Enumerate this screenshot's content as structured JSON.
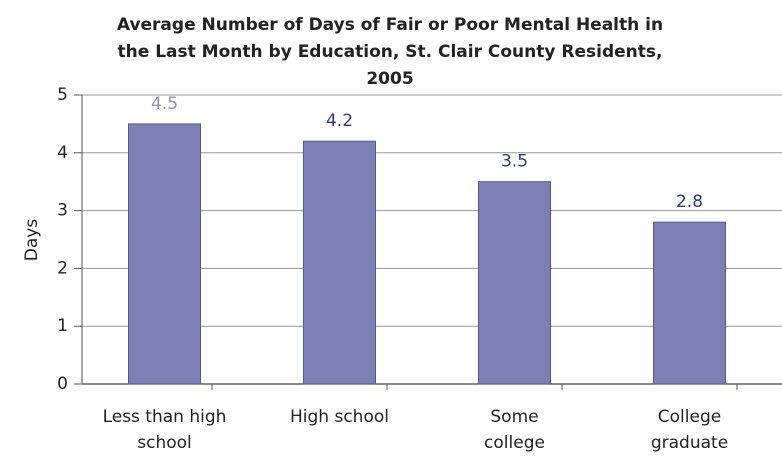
{
  "chart_data": {
    "type": "bar",
    "title": "Average Number of Days of Fair or Poor Mental Health in the Last Month by Education, St. Clair County Residents, 2005",
    "y_label": "Days",
    "categories": [
      "Less than high school",
      "High school",
      "Some college",
      "College graduate"
    ],
    "values": [
      4.5,
      4.2,
      3.5,
      2.8
    ],
    "color": "#7d80b5",
    "ylim": [
      0,
      5
    ],
    "yticks": [
      0,
      1,
      2,
      3,
      4,
      5
    ],
    "grid": true
  }
}
